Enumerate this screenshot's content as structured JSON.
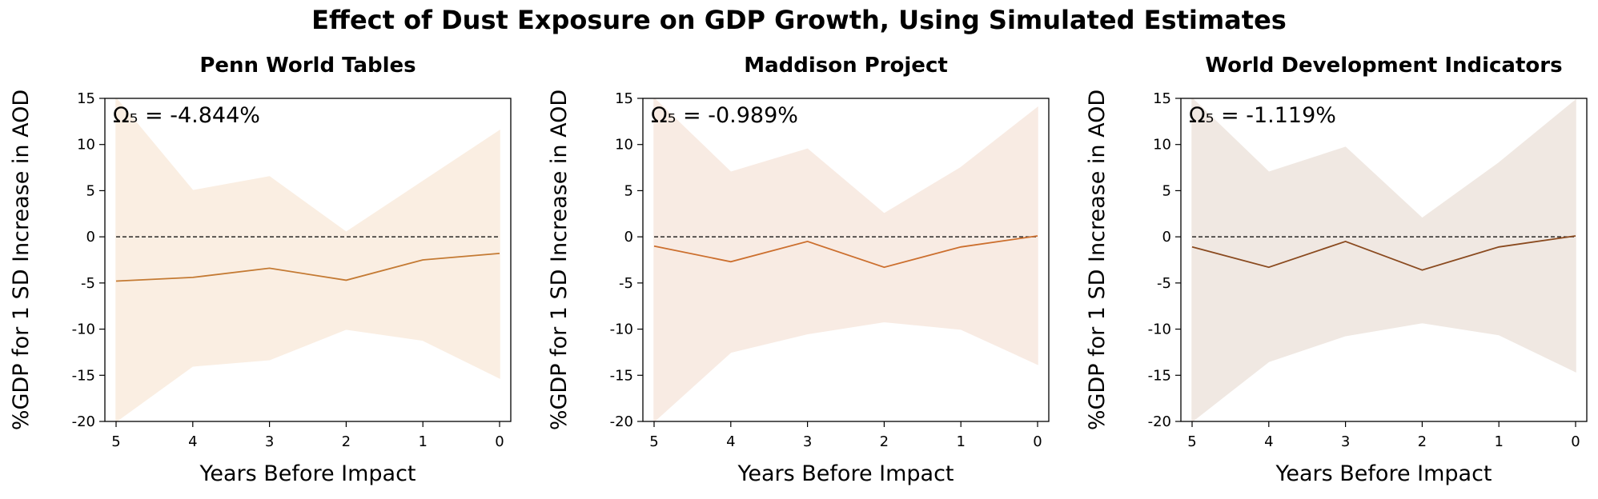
{
  "figure": {
    "title": "Effect of Dust Exposure on GDP Growth, Using Simulated Estimates"
  },
  "chart_data": [
    {
      "type": "line",
      "title": "Penn World Tables",
      "annotation": "Ω₅ = -4.844%",
      "xlabel": "Years Before Impact",
      "ylabel": "%GDP for 1 SD Increase in AOD",
      "x": [
        5,
        4,
        3,
        2,
        1,
        0
      ],
      "xticks": [
        "5",
        "4",
        "3",
        "2",
        "1",
        "0"
      ],
      "ylim": [
        -20,
        15
      ],
      "yticks": [
        "15",
        "10",
        "5",
        "0",
        "-5",
        "-10",
        "-15",
        "-20"
      ],
      "grid": false,
      "reference_line": 0,
      "line_color": "#c47a33",
      "band_color": "#faeee2",
      "series": [
        {
          "values": [
            -4.8,
            -4.4,
            -3.4,
            -4.7,
            -2.5,
            -1.8
          ]
        }
      ],
      "band_upper": [
        15.0,
        5.0,
        6.5,
        0.5,
        6.0,
        11.5
      ],
      "band_lower": [
        -20.0,
        -14.0,
        -13.3,
        -10.0,
        -11.2,
        -15.3
      ]
    },
    {
      "type": "line",
      "title": "Maddison Project",
      "annotation": "Ω₅ = -0.989%",
      "xlabel": "Years Before Impact",
      "ylabel": "%GDP for 1 SD Increase in AOD",
      "x": [
        5,
        4,
        3,
        2,
        1,
        0
      ],
      "xticks": [
        "5",
        "4",
        "3",
        "2",
        "1",
        "0"
      ],
      "ylim": [
        -20,
        15
      ],
      "yticks": [
        "15",
        "10",
        "5",
        "0",
        "-5",
        "-10",
        "-15",
        "-20"
      ],
      "grid": false,
      "reference_line": 0,
      "line_color": "#cc6f2e",
      "band_color": "#f8ebe3",
      "series": [
        {
          "values": [
            -1.0,
            -2.7,
            -0.5,
            -3.3,
            -1.1,
            0.1
          ]
        }
      ],
      "band_upper": [
        15.0,
        7.0,
        9.5,
        2.5,
        7.5,
        14.0
      ],
      "band_lower": [
        -20.0,
        -12.5,
        -10.5,
        -9.2,
        -10.0,
        -13.8
      ]
    },
    {
      "type": "line",
      "title": "World Development Indicators",
      "annotation": "Ω₅ = -1.119%",
      "xlabel": "Years Before Impact",
      "ylabel": "%GDP for 1 SD Increase in AOD",
      "x": [
        5,
        4,
        3,
        2,
        1,
        0
      ],
      "xticks": [
        "5",
        "4",
        "3",
        "2",
        "1",
        "0"
      ],
      "ylim": [
        -20,
        15
      ],
      "yticks": [
        "15",
        "10",
        "5",
        "0",
        "-5",
        "-10",
        "-15",
        "-20"
      ],
      "grid": false,
      "reference_line": 0,
      "line_color": "#8a4a1f",
      "band_color": "#f0e8e2",
      "series": [
        {
          "values": [
            -1.1,
            -3.3,
            -0.5,
            -3.6,
            -1.1,
            0.1
          ]
        }
      ],
      "band_upper": [
        15.0,
        7.0,
        9.7,
        2.0,
        8.0,
        14.8
      ],
      "band_lower": [
        -20.0,
        -13.5,
        -10.7,
        -9.3,
        -10.6,
        -14.6
      ]
    }
  ]
}
